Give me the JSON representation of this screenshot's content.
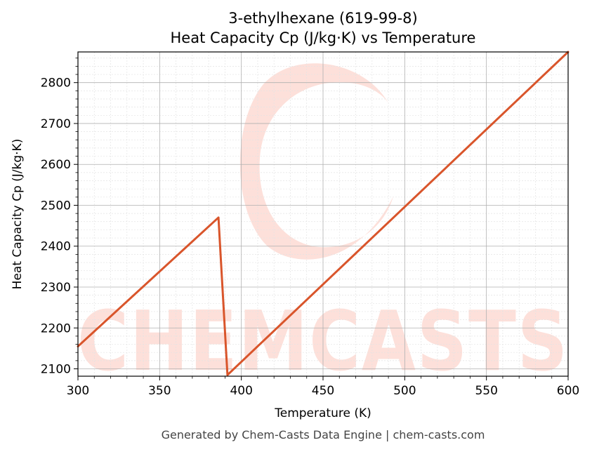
{
  "chart_data": {
    "type": "line",
    "title": "3-ethylhexane (619-99-8)",
    "subtitle": "Heat Capacity Cp (J/kg·K) vs Temperature",
    "xlabel": "Temperature (K)",
    "ylabel": "Heat Capacity Cp (J/kg·K)",
    "xlim": [
      300,
      600
    ],
    "ylim": [
      2082,
      2875
    ],
    "xticks": [
      300,
      350,
      400,
      450,
      500,
      550,
      600
    ],
    "yticks": [
      2100,
      2200,
      2300,
      2400,
      2500,
      2600,
      2700,
      2800
    ],
    "grid": true,
    "minor_grid": true,
    "legend": "none",
    "series": [
      {
        "color": "#d9552b",
        "x": [
          300,
          386,
          391.5,
          600
        ],
        "y": [
          2155,
          2470,
          2085,
          2875
        ]
      }
    ]
  },
  "watermark": {
    "text": "CHEMCASTS",
    "color": "#fde0da"
  },
  "footer": "Generated by Chem-Casts Data Engine | chem-casts.com"
}
